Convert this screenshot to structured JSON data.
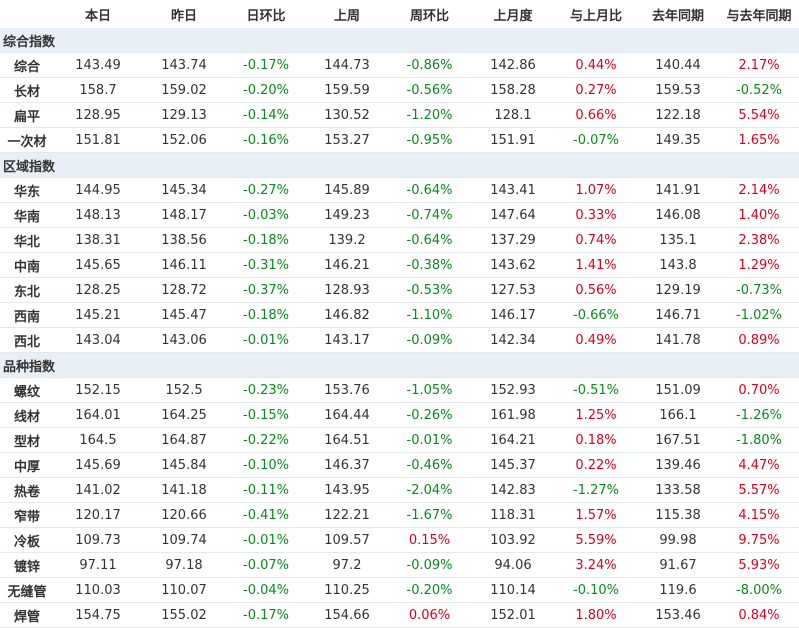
{
  "colors": {
    "up": "#e0001b",
    "down": "#0b8a1d",
    "section_bg": "#e9eff7"
  },
  "headers": [
    "",
    "本日",
    "昨日",
    "日环比",
    "上周",
    "周环比",
    "上月度",
    "与上月比",
    "去年同期",
    "与去年同期"
  ],
  "sections": [
    {
      "title": "综合指数",
      "rows": [
        {
          "name": "综合",
          "today": "143.49",
          "yesterday": "143.74",
          "dod": "-0.17%",
          "last_week": "144.73",
          "wow": "-0.86%",
          "last_month": "142.86",
          "mom": "0.44%",
          "last_year": "140.44",
          "yoy": "2.17%"
        },
        {
          "name": "长材",
          "today": "158.7",
          "yesterday": "159.02",
          "dod": "-0.20%",
          "last_week": "159.59",
          "wow": "-0.56%",
          "last_month": "158.28",
          "mom": "0.27%",
          "last_year": "159.53",
          "yoy": "-0.52%"
        },
        {
          "name": "扁平",
          "today": "128.95",
          "yesterday": "129.13",
          "dod": "-0.14%",
          "last_week": "130.52",
          "wow": "-1.20%",
          "last_month": "128.1",
          "mom": "0.66%",
          "last_year": "122.18",
          "yoy": "5.54%"
        },
        {
          "name": "一次材",
          "today": "151.81",
          "yesterday": "152.06",
          "dod": "-0.16%",
          "last_week": "153.27",
          "wow": "-0.95%",
          "last_month": "151.91",
          "mom": "-0.07%",
          "last_year": "149.35",
          "yoy": "1.65%"
        }
      ]
    },
    {
      "title": "区域指数",
      "rows": [
        {
          "name": "华东",
          "today": "144.95",
          "yesterday": "145.34",
          "dod": "-0.27%",
          "last_week": "145.89",
          "wow": "-0.64%",
          "last_month": "143.41",
          "mom": "1.07%",
          "last_year": "141.91",
          "yoy": "2.14%"
        },
        {
          "name": "华南",
          "today": "148.13",
          "yesterday": "148.17",
          "dod": "-0.03%",
          "last_week": "149.23",
          "wow": "-0.74%",
          "last_month": "147.64",
          "mom": "0.33%",
          "last_year": "146.08",
          "yoy": "1.40%"
        },
        {
          "name": "华北",
          "today": "138.31",
          "yesterday": "138.56",
          "dod": "-0.18%",
          "last_week": "139.2",
          "wow": "-0.64%",
          "last_month": "137.29",
          "mom": "0.74%",
          "last_year": "135.1",
          "yoy": "2.38%"
        },
        {
          "name": "中南",
          "today": "145.65",
          "yesterday": "146.11",
          "dod": "-0.31%",
          "last_week": "146.21",
          "wow": "-0.38%",
          "last_month": "143.62",
          "mom": "1.41%",
          "last_year": "143.8",
          "yoy": "1.29%"
        },
        {
          "name": "东北",
          "today": "128.25",
          "yesterday": "128.72",
          "dod": "-0.37%",
          "last_week": "128.93",
          "wow": "-0.53%",
          "last_month": "127.53",
          "mom": "0.56%",
          "last_year": "129.19",
          "yoy": "-0.73%"
        },
        {
          "name": "西南",
          "today": "145.21",
          "yesterday": "145.47",
          "dod": "-0.18%",
          "last_week": "146.82",
          "wow": "-1.10%",
          "last_month": "146.17",
          "mom": "-0.66%",
          "last_year": "146.71",
          "yoy": "-1.02%"
        },
        {
          "name": "西北",
          "today": "143.04",
          "yesterday": "143.06",
          "dod": "-0.01%",
          "last_week": "143.17",
          "wow": "-0.09%",
          "last_month": "142.34",
          "mom": "0.49%",
          "last_year": "141.78",
          "yoy": "0.89%"
        }
      ]
    },
    {
      "title": "品种指数",
      "rows": [
        {
          "name": "螺纹",
          "today": "152.15",
          "yesterday": "152.5",
          "dod": "-0.23%",
          "last_week": "153.76",
          "wow": "-1.05%",
          "last_month": "152.93",
          "mom": "-0.51%",
          "last_year": "151.09",
          "yoy": "0.70%"
        },
        {
          "name": "线材",
          "today": "164.01",
          "yesterday": "164.25",
          "dod": "-0.15%",
          "last_week": "164.44",
          "wow": "-0.26%",
          "last_month": "161.98",
          "mom": "1.25%",
          "last_year": "166.1",
          "yoy": "-1.26%"
        },
        {
          "name": "型材",
          "today": "164.5",
          "yesterday": "164.87",
          "dod": "-0.22%",
          "last_week": "164.51",
          "wow": "-0.01%",
          "last_month": "164.21",
          "mom": "0.18%",
          "last_year": "167.51",
          "yoy": "-1.80%"
        },
        {
          "name": "中厚",
          "today": "145.69",
          "yesterday": "145.84",
          "dod": "-0.10%",
          "last_week": "146.37",
          "wow": "-0.46%",
          "last_month": "145.37",
          "mom": "0.22%",
          "last_year": "139.46",
          "yoy": "4.47%"
        },
        {
          "name": "热卷",
          "today": "141.02",
          "yesterday": "141.18",
          "dod": "-0.11%",
          "last_week": "143.95",
          "wow": "-2.04%",
          "last_month": "142.83",
          "mom": "-1.27%",
          "last_year": "133.58",
          "yoy": "5.57%"
        },
        {
          "name": "窄带",
          "today": "120.17",
          "yesterday": "120.66",
          "dod": "-0.41%",
          "last_week": "122.21",
          "wow": "-1.67%",
          "last_month": "118.31",
          "mom": "1.57%",
          "last_year": "115.38",
          "yoy": "4.15%"
        },
        {
          "name": "冷板",
          "today": "109.73",
          "yesterday": "109.74",
          "dod": "-0.01%",
          "last_week": "109.57",
          "wow": "0.15%",
          "last_month": "103.92",
          "mom": "5.59%",
          "last_year": "99.98",
          "yoy": "9.75%"
        },
        {
          "name": "镀锌",
          "today": "97.11",
          "yesterday": "97.18",
          "dod": "-0.07%",
          "last_week": "97.2",
          "wow": "-0.09%",
          "last_month": "94.06",
          "mom": "3.24%",
          "last_year": "91.67",
          "yoy": "5.93%"
        },
        {
          "name": "无缝管",
          "today": "110.03",
          "yesterday": "110.07",
          "dod": "-0.04%",
          "last_week": "110.25",
          "wow": "-0.20%",
          "last_month": "110.14",
          "mom": "-0.10%",
          "last_year": "119.6",
          "yoy": "-8.00%"
        },
        {
          "name": "焊管",
          "today": "154.75",
          "yesterday": "155.02",
          "dod": "-0.17%",
          "last_week": "154.66",
          "wow": "0.06%",
          "last_month": "152.01",
          "mom": "1.80%",
          "last_year": "153.46",
          "yoy": "0.84%"
        }
      ]
    }
  ]
}
